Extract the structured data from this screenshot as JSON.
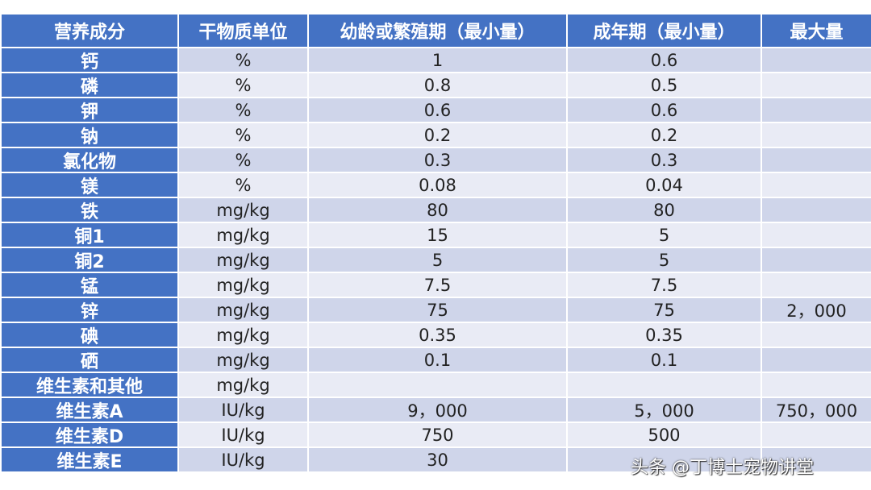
{
  "table": {
    "header": [
      "营养成分",
      "干物质单位",
      "幼龄或繁殖期（最小量）",
      "成年期（最小量）",
      "最大量"
    ],
    "rows": [
      [
        "钙",
        "%",
        "1",
        "0.6",
        null
      ],
      [
        "磷",
        "%",
        "0.8",
        "0.5",
        null
      ],
      [
        "钾",
        "%",
        "0.6",
        "0.6",
        null
      ],
      [
        "钠",
        "%",
        "0.2",
        "0.2",
        null
      ],
      [
        "氯化物",
        "%",
        "0.3",
        "0.3",
        null
      ],
      [
        "镁",
        "%",
        "0.08",
        "0.04",
        null
      ],
      [
        "铁",
        "mg/kg",
        "80",
        "80",
        null
      ],
      [
        "铜1",
        "mg/kg",
        "15",
        "5",
        null
      ],
      [
        "铜2",
        "mg/kg",
        "5",
        "5",
        null
      ],
      [
        "锰",
        "mg/kg",
        "7.5",
        "7.5",
        null
      ],
      [
        "锌",
        "mg/kg",
        "75",
        "75",
        "2，000"
      ],
      [
        "碘",
        "mg/kg",
        "0.35",
        "0.35",
        null
      ],
      [
        "硒",
        "mg/kg",
        "0.1",
        "0.1",
        null
      ],
      [
        "维生素和其他",
        "mg/kg",
        null,
        null,
        null
      ],
      [
        "维生素A",
        "IU/kg",
        "9，000",
        "5，000",
        "750，000"
      ],
      [
        "维生素D",
        "IU/kg",
        "750",
        "500",
        null
      ],
      [
        "维生素E",
        "IU/kg",
        "30",
        null,
        null
      ]
    ]
  },
  "watermark": "头条 @丁博士宠物讲堂"
}
